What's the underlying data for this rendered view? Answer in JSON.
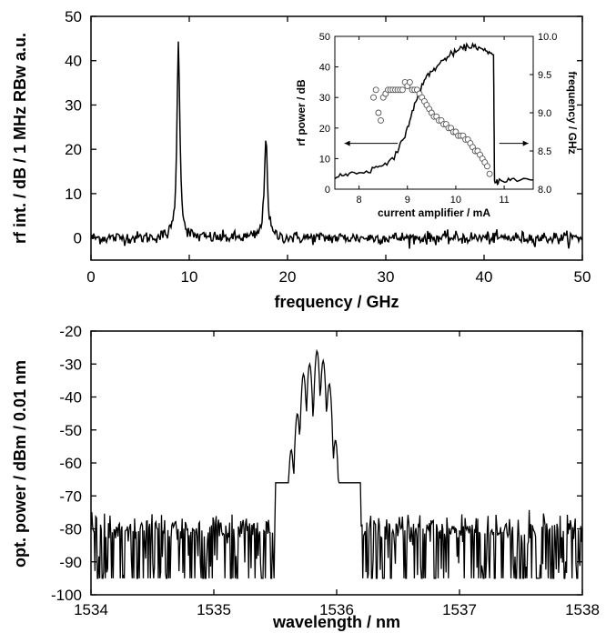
{
  "chart_data": [
    {
      "id": "rf",
      "type": "line",
      "xlabel": "frequency / GHz",
      "ylabel": "rf int. / dB / 1 MHz RBw a.u.",
      "xlim": [
        0,
        50
      ],
      "ylim": [
        -5,
        50
      ],
      "xticks": [
        "0",
        "10",
        "20",
        "30",
        "40",
        "50"
      ],
      "yticks": [
        "0",
        "10",
        "20",
        "30",
        "40",
        "50"
      ],
      "baseline_noise_level": 0,
      "peaks": [
        {
          "x": 8.9,
          "y": 44
        },
        {
          "x": 17.8,
          "y": 23.5
        }
      ]
    },
    {
      "id": "inset",
      "type": "line+scatter",
      "xlabel": "current amplifier / mA",
      "ylabel": "rf power / dB",
      "ylabel_right": "frequency / GHz",
      "xlim": [
        7.5,
        11.6
      ],
      "ylim": [
        0,
        50
      ],
      "ylim_right": [
        8.0,
        10.0
      ],
      "xticks": [
        "8",
        "9",
        "10",
        "11"
      ],
      "yticks": [
        "0",
        "10",
        "20",
        "30",
        "40",
        "50"
      ],
      "yticks_right": [
        "8.0",
        "8.5",
        "9.0",
        "9.5",
        "10.0"
      ],
      "line": {
        "x": [
          7.5,
          7.8,
          8.2,
          8.5,
          8.8,
          9.0,
          9.2,
          9.4,
          9.6,
          9.8,
          10.0,
          10.2,
          10.4,
          10.6,
          10.78,
          10.8,
          10.9,
          11.2,
          11.6
        ],
        "y": [
          4,
          5,
          6,
          8,
          12,
          20,
          30,
          37,
          40,
          43,
          45,
          46.5,
          47,
          45,
          44,
          2,
          3,
          3,
          3
        ]
      },
      "scatter": {
        "x": [
          8.3,
          8.35,
          8.4,
          8.45,
          8.5,
          8.55,
          8.6,
          8.65,
          8.7,
          8.75,
          8.8,
          8.85,
          8.9,
          8.95,
          9.0,
          9.05,
          9.1,
          9.15,
          9.2,
          9.25,
          9.3,
          9.35,
          9.4,
          9.45,
          9.5,
          9.55,
          9.6,
          9.65,
          9.7,
          9.75,
          9.8,
          9.85,
          9.9,
          9.95,
          10.0,
          10.05,
          10.1,
          10.15,
          10.2,
          10.25,
          10.3,
          10.35,
          10.4,
          10.45,
          10.5,
          10.55,
          10.6,
          10.65,
          10.7
        ],
        "y": [
          9.2,
          9.3,
          9.0,
          8.9,
          9.2,
          9.25,
          9.3,
          9.3,
          9.3,
          9.3,
          9.3,
          9.3,
          9.3,
          9.4,
          9.35,
          9.4,
          9.3,
          9.3,
          9.3,
          9.25,
          9.2,
          9.15,
          9.1,
          9.05,
          9.0,
          8.95,
          8.95,
          8.9,
          8.9,
          8.85,
          8.85,
          8.8,
          8.8,
          8.75,
          8.75,
          8.7,
          8.7,
          8.7,
          8.65,
          8.65,
          8.6,
          8.55,
          8.5,
          8.5,
          8.45,
          8.4,
          8.35,
          8.3,
          8.2
        ]
      },
      "arrow_left": {
        "from_x": 8.8,
        "to_x": 7.7,
        "y": 15
      },
      "arrow_right": {
        "from_x": 10.9,
        "to_x": 11.5,
        "y": 15
      }
    },
    {
      "id": "opt",
      "type": "line",
      "xlabel": "wavelength / nm",
      "ylabel": "opt. power / dBm / 0.01 nm",
      "xlim": [
        1534,
        1538
      ],
      "ylim": [
        -100,
        -20
      ],
      "xticks": [
        "1534",
        "1535",
        "1536",
        "1537",
        "1538"
      ],
      "yticks": [
        "-20",
        "-30",
        "-40",
        "-50",
        "-60",
        "-70",
        "-80",
        "-90",
        "-100"
      ],
      "noise_floor": -80,
      "peaks": [
        {
          "x": 1535.63,
          "y": -56
        },
        {
          "x": 1535.68,
          "y": -45
        },
        {
          "x": 1535.73,
          "y": -33
        },
        {
          "x": 1535.78,
          "y": -30
        },
        {
          "x": 1535.84,
          "y": -26
        },
        {
          "x": 1535.89,
          "y": -29
        },
        {
          "x": 1535.94,
          "y": -36
        },
        {
          "x": 1535.99,
          "y": -53
        },
        {
          "x": 1536.04,
          "y": -66
        }
      ]
    }
  ]
}
